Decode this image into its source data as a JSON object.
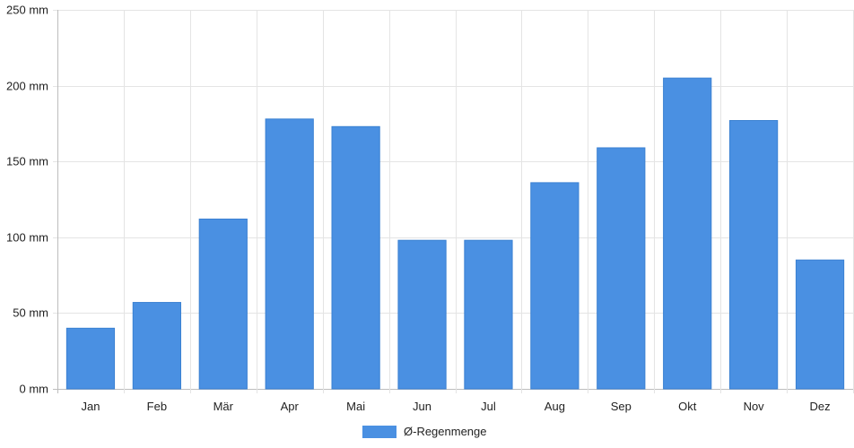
{
  "chart_data": {
    "type": "bar",
    "categories": [
      "Jan",
      "Feb",
      "Mär",
      "Apr",
      "Mai",
      "Jun",
      "Jul",
      "Aug",
      "Sep",
      "Okt",
      "Nov",
      "Dez"
    ],
    "series": [
      {
        "name": "Ø-Regenmenge",
        "values": [
          40,
          57,
          112,
          178,
          173,
          98,
          98,
          136,
          159,
          205,
          177,
          85
        ],
        "color": "#4a90e2"
      }
    ],
    "y_ticks": [
      "0 mm",
      "50 mm",
      "100 mm",
      "150 mm",
      "200 mm",
      "250 mm"
    ],
    "ylim": [
      0,
      250
    ],
    "y_step": 50,
    "grid": true,
    "legend_position": "bottom-center"
  }
}
